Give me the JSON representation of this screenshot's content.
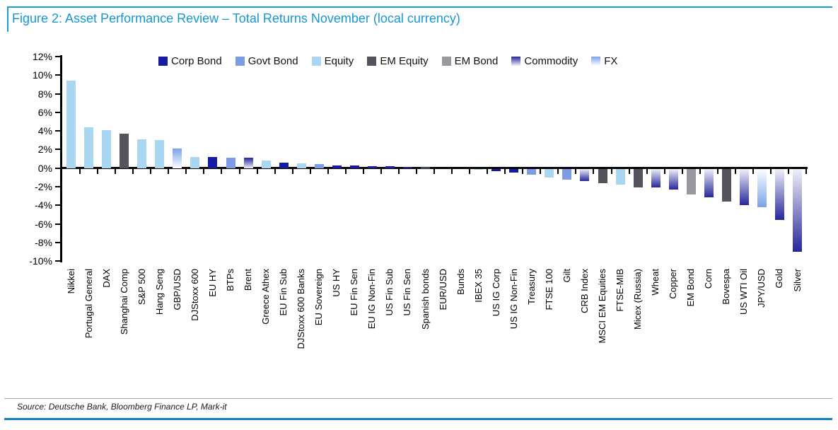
{
  "header": {
    "title": "Figure 2: Asset Performance Review – Total Returns November (local currency)"
  },
  "footer": {
    "source": "Source: Deutsche Bank, Bloomberg Finance LP, Mark-it"
  },
  "colors": {
    "title_blue": "#1697d4",
    "rule_blue_top": "#1e9cd8",
    "rule_blue_bottom": "#0f81c4",
    "axis_black": "#000000"
  },
  "chart_data": {
    "type": "bar",
    "title": "Asset Performance Review – Total Returns November (local currency)",
    "ylim": [
      -10,
      12
    ],
    "ytick_values": [
      12,
      10,
      8,
      6,
      4,
      2,
      0,
      -2,
      -4,
      -6,
      -8,
      -10
    ],
    "ytick_labels": [
      "12%",
      "10%",
      "8%",
      "6%",
      "4%",
      "2%",
      "0%",
      "-2%",
      "-4%",
      "-6%",
      "-8%",
      "-10%"
    ],
    "grid": false,
    "legend_position": "top",
    "legend": [
      "Corp Bond",
      "Govt Bond",
      "Equity",
      "EM Equity",
      "EM Bond",
      "Commodity",
      "FX"
    ],
    "class_colors": {
      "Corp Bond": {
        "type": "solid",
        "color": "#161ba4"
      },
      "Govt Bond": {
        "type": "solid",
        "color": "#7e9ce6"
      },
      "Equity": {
        "type": "solid",
        "color": "#a9d7f2"
      },
      "EM Equity": {
        "type": "solid",
        "color": "#54545c"
      },
      "EM Bond": {
        "type": "solid",
        "color": "#98989e"
      },
      "Commodity": {
        "type": "gradient",
        "color": "#26269a",
        "light": "#f0f0fa"
      },
      "FX": {
        "type": "gradient",
        "color": "#7aa2e8",
        "light": "#ffffff"
      }
    },
    "categories": [
      "Nikkei",
      "Portugal General",
      "DAX",
      "Shanghai Comp",
      "S&P 500",
      "Hang Seng",
      "GBP/USD",
      "DJStoxx 600",
      "EU HY",
      "BTPs",
      "Brent",
      "Greece Athex",
      "EU Fin Sub",
      "DJStoxx 600 Banks",
      "EU Sovereign",
      "US HY",
      "EU Fin Sen",
      "EU IG Non-Fin",
      "US Fin Sub",
      "US Fin Sen",
      "Spanish bonds",
      "EUR/USD",
      "Bunds",
      "IBEX 35",
      "US IG Corp",
      "US IG Non-Fin",
      "Treasury",
      "FTSE 100",
      "Gilt",
      "CRB Index",
      "MSCI EM Equities",
      "FTSE-MIB",
      "Micex (Russia)",
      "Wheat",
      "Copper",
      "EM Bond",
      "Corn",
      "Bovespa",
      "US WTI Oil",
      "JPY/USD",
      "Gold",
      "Silver"
    ],
    "values": [
      9.4,
      4.4,
      4.1,
      3.7,
      3.1,
      3.0,
      2.1,
      1.2,
      1.2,
      1.1,
      1.1,
      0.8,
      0.6,
      0.5,
      0.4,
      0.3,
      0.3,
      0.2,
      0.2,
      0.1,
      0.05,
      0.0,
      0.0,
      -0.1,
      -0.2,
      -0.4,
      -0.6,
      -0.9,
      -1.1,
      -1.3,
      -1.5,
      -1.7,
      -2.0,
      -2.0,
      -2.2,
      -2.7,
      -3.0,
      -3.5,
      -3.9,
      -4.1,
      -5.5,
      -8.9
    ],
    "bar_classes": [
      "Equity",
      "Equity",
      "Equity",
      "EM Equity",
      "Equity",
      "Equity",
      "FX",
      "Equity",
      "Corp Bond",
      "Govt Bond",
      "Commodity",
      "Equity",
      "Corp Bond",
      "Equity",
      "Govt Bond",
      "Corp Bond",
      "Corp Bond",
      "Corp Bond",
      "Corp Bond",
      "Corp Bond",
      "Govt Bond",
      "FX",
      "Govt Bond",
      "Equity",
      "Corp Bond",
      "Corp Bond",
      "Govt Bond",
      "Equity",
      "Govt Bond",
      "Commodity",
      "EM Equity",
      "Equity",
      "EM Equity",
      "Commodity",
      "Commodity",
      "EM Bond",
      "Commodity",
      "EM Equity",
      "Commodity",
      "FX",
      "Commodity",
      "Commodity"
    ]
  }
}
